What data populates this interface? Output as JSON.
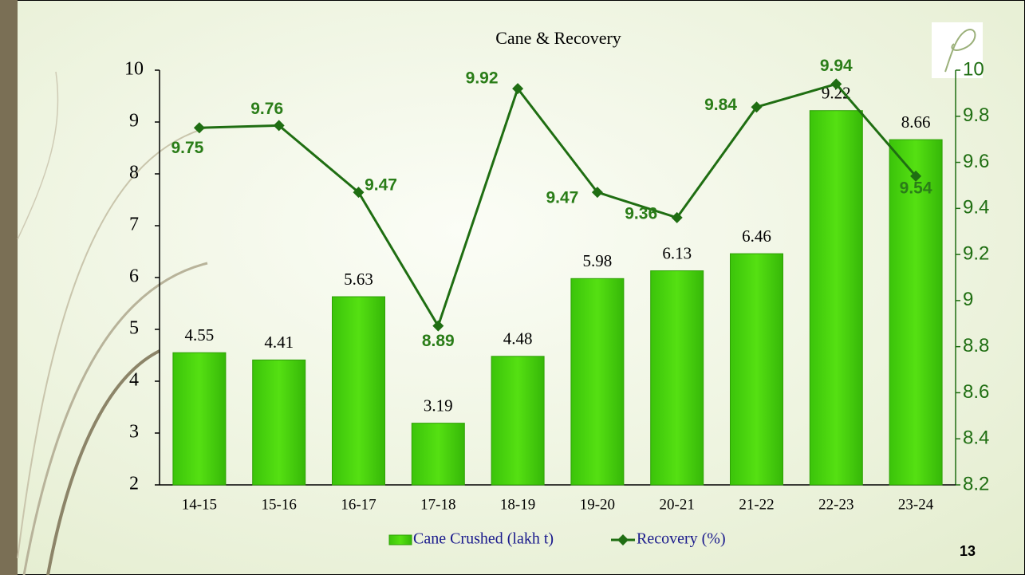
{
  "chart_data": {
    "type": "bar-line",
    "title": "Cane & Recovery",
    "categories": [
      "14-15",
      "15-16",
      "16-17",
      "17-18",
      "18-19",
      "19-20",
      "20-21",
      "21-22",
      "22-23",
      "23-24"
    ],
    "series": [
      {
        "name": "Cane Crushed (lakh t)",
        "color": "#4ad60a",
        "type": "bar",
        "values": [
          4.55,
          4.41,
          5.63,
          3.19,
          4.48,
          5.98,
          6.13,
          6.46,
          9.22,
          8.66
        ]
      },
      {
        "name": "Recovery (%)",
        "color": "#1f6e12",
        "type": "line",
        "axis": "y2",
        "values": [
          9.75,
          9.76,
          9.47,
          8.89,
          9.92,
          9.47,
          9.36,
          9.84,
          9.94,
          9.54
        ]
      }
    ],
    "ylim": [
      2,
      10
    ],
    "yticks": [
      2,
      3,
      4,
      5,
      6,
      7,
      8,
      9,
      10
    ],
    "y2lim": [
      8.2,
      10
    ],
    "y2ticks": [
      8.2,
      8.4,
      8.6,
      8.8,
      9,
      9.2,
      9.4,
      9.6,
      9.8,
      10
    ],
    "legend": "bottom"
  },
  "page_number": "13"
}
